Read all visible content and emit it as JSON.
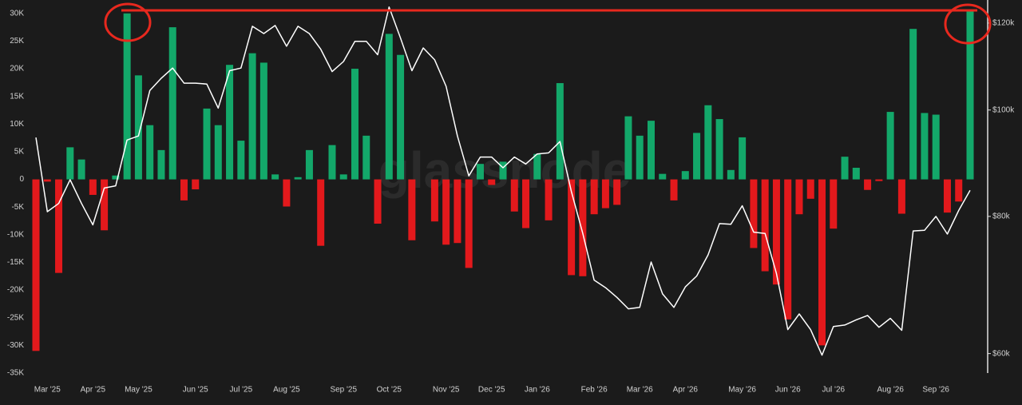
{
  "chart_data": {
    "type": "bar",
    "watermark": "glassnode",
    "categories": [
      null,
      "Mar '25",
      null,
      null,
      null,
      "Apr '25",
      null,
      null,
      null,
      "May '25",
      null,
      null,
      null,
      null,
      "Jun '25",
      null,
      null,
      null,
      "Jul '25",
      null,
      null,
      null,
      "Aug '25",
      null,
      null,
      null,
      null,
      "Sep '25",
      null,
      null,
      null,
      "Oct '25",
      null,
      null,
      null,
      null,
      "Nov '25",
      null,
      null,
      null,
      "Dec '25",
      null,
      null,
      null,
      "Jan '26",
      null,
      null,
      null,
      null,
      "Feb '26",
      null,
      null,
      null,
      "Mar '26",
      null,
      null,
      null,
      "Apr '26",
      null,
      null,
      null,
      null,
      "May '26",
      null,
      null,
      null,
      "Jun '26",
      null,
      null,
      null,
      "Jul '26",
      null,
      null,
      null,
      null,
      "Aug '26",
      null,
      null,
      null,
      "Sep '26",
      null,
      null,
      null
    ],
    "series": [
      {
        "type": "bar",
        "color": "#13a86a",
        "negative_color": "#e3191c",
        "values": [
          -31000,
          -400,
          -16900,
          5800,
          3600,
          -2800,
          -9200,
          700,
          30000,
          18800,
          9800,
          5300,
          27500,
          -3800,
          -1800,
          12800,
          9800,
          20700,
          7000,
          22800,
          21100,
          900,
          -4900,
          400,
          5300,
          -12000,
          6200,
          900,
          20000,
          7900,
          -8000,
          26300,
          22500,
          -11000,
          0,
          -7600,
          -11800,
          -11500,
          -16000,
          2800,
          -1000,
          3200,
          -5800,
          -8800,
          4600,
          -7400,
          17400,
          -17300,
          -17500,
          -6300,
          -5200,
          -4600,
          11400,
          7900,
          10600,
          1000,
          -3800,
          1500,
          8400,
          13400,
          10900,
          1700,
          7600,
          -12400,
          -16600,
          -19000,
          -25300,
          -6300,
          -3500,
          -30000,
          -8900,
          4100,
          2100,
          -1900,
          -300,
          12200,
          -6200,
          27200,
          12000,
          11700,
          -6000,
          -4000,
          30400
        ]
      },
      {
        "type": "line",
        "axis": "y2",
        "color": "#ffffff",
        "values": [
          94400,
          80800,
          82200,
          86400,
          82200,
          78600,
          84900,
          85300,
          93900,
          94700,
          104200,
          106900,
          109200,
          105800,
          105800,
          105600,
          100400,
          108600,
          109200,
          119200,
          117400,
          119400,
          114300,
          119200,
          117400,
          113600,
          108400,
          110700,
          115500,
          115500,
          112300,
          124100,
          116300,
          108600,
          113900,
          111100,
          105100,
          94700,
          87100,
          90600,
          90600,
          88600,
          90600,
          89300,
          91200,
          91400,
          93600,
          84300,
          77200,
          70000,
          68900,
          67500,
          65900,
          66100,
          72700,
          68000,
          66100,
          69000,
          70600,
          73800,
          78800,
          78700,
          81800,
          77400,
          77200,
          71000,
          63100,
          65200,
          63100,
          59800,
          63500,
          63700,
          64400,
          65000,
          63400,
          64600,
          63000,
          77600,
          77700,
          80000,
          77100,
          81000,
          84500
        ]
      }
    ],
    "ylim": [
      -35000,
      31700
    ],
    "yticks": [
      {
        "value": -35000,
        "label": "-35K"
      },
      {
        "value": -30000,
        "label": "-30K"
      },
      {
        "value": -25000,
        "label": "-25K"
      },
      {
        "value": -20000,
        "label": "-20K"
      },
      {
        "value": -15000,
        "label": "-15K"
      },
      {
        "value": -10000,
        "label": "-10K"
      },
      {
        "value": -5000,
        "label": "-5K"
      },
      0,
      {
        "value": 5000,
        "label": "5K"
      },
      {
        "value": 10000,
        "label": "10K"
      },
      {
        "value": 15000,
        "label": "15K"
      },
      {
        "value": 20000,
        "label": "20K"
      },
      {
        "value": 25000,
        "label": "25K"
      },
      {
        "value": 30000,
        "label": "30K"
      }
    ],
    "y2lim": [
      57600,
      124900
    ],
    "y2log": true,
    "y2ticks": [
      {
        "value": 60000,
        "label": "$60k"
      },
      {
        "value": 80000,
        "label": "$80k"
      },
      {
        "value": 100000,
        "label": "$100k"
      },
      {
        "value": 120000,
        "label": "$120k"
      }
    ]
  }
}
